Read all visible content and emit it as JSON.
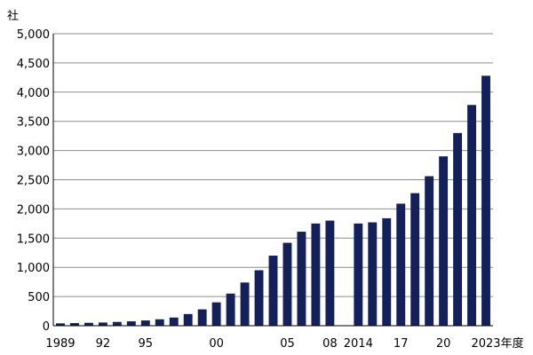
{
  "chart_data": {
    "type": "bar",
    "ylabel": "社",
    "xunit": "年度",
    "ylim": [
      0,
      5000
    ],
    "yticks": [
      0,
      500,
      1000,
      1500,
      2000,
      2500,
      3000,
      3500,
      4000,
      4500,
      5000
    ],
    "yticks_labels": [
      "0",
      "500",
      "1,000",
      "1,500",
      "2,000",
      "2,500",
      "3,000",
      "3,500",
      "4,000",
      "4,500",
      "5,000"
    ],
    "grid": true,
    "legend": "none",
    "bar_color": "#13205a",
    "gap_after": "08",
    "categories": [
      "1989",
      "90",
      "91",
      "92",
      "93",
      "94",
      "95",
      "96",
      "97",
      "98",
      "99",
      "00",
      "01",
      "02",
      "03",
      "04",
      "05",
      "06",
      "07",
      "08",
      "2014",
      "15",
      "16",
      "17",
      "18",
      "19",
      "20",
      "21",
      "22",
      "2023"
    ],
    "values": [
      40,
      45,
      50,
      55,
      65,
      75,
      90,
      110,
      140,
      200,
      280,
      400,
      550,
      740,
      950,
      1200,
      1420,
      1610,
      1750,
      1800,
      1750,
      1770,
      1840,
      2090,
      2270,
      2560,
      2900,
      3300,
      3780,
      4280
    ],
    "xtick_labels_shown": [
      "1989",
      "92",
      "95",
      "00",
      "05",
      "08",
      "2014",
      "17",
      "20",
      "2023"
    ]
  }
}
